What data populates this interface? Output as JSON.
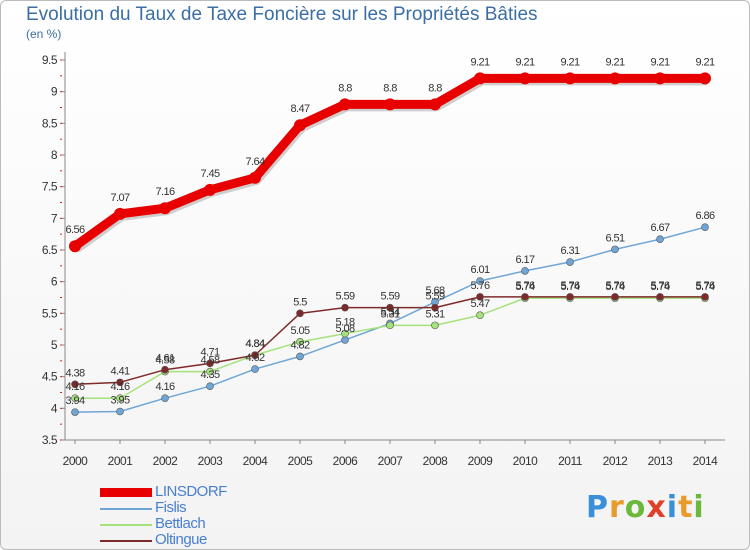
{
  "chart_data": {
    "type": "line",
    "title": "Evolution du Taux de Taxe Foncière sur les Propriétés Bâties",
    "subtitle": "(en %)",
    "xlabel": "",
    "ylabel": "",
    "categories": [
      "2000",
      "2001",
      "2002",
      "2003",
      "2004",
      "2005",
      "2006",
      "2007",
      "2008",
      "2009",
      "2010",
      "2011",
      "2012",
      "2013",
      "2014"
    ],
    "yticks": [
      "3.5",
      "4",
      "4.5",
      "5",
      "5.5",
      "6",
      "6.5",
      "7",
      "7.5",
      "8",
      "8.5",
      "9",
      "9.5"
    ],
    "ylim": [
      3.5,
      9.5
    ],
    "series": [
      {
        "name": "LINSDORF",
        "color": "#e80000",
        "values": [
          6.56,
          7.07,
          7.16,
          7.45,
          7.64,
          8.47,
          8.8,
          8.8,
          8.8,
          9.21,
          9.21,
          9.21,
          9.21,
          9.21,
          9.21
        ],
        "labels": [
          "6.56",
          "7.07",
          "7.16",
          "7.45",
          "7.64",
          "8.47",
          "8.8",
          "8.8",
          "8.8",
          "9.21",
          "9.21",
          "9.21",
          "9.21",
          "9.21",
          "9.21"
        ]
      },
      {
        "name": "Fislis",
        "color": "#6fa6d6",
        "values": [
          3.94,
          3.95,
          4.16,
          4.35,
          4.62,
          4.82,
          5.08,
          5.34,
          5.68,
          6.01,
          6.17,
          6.31,
          6.51,
          6.67,
          6.86
        ],
        "labels": [
          "3.94",
          "3.95",
          "4.16",
          "4.35",
          "4.62",
          "4.82",
          "5.08",
          "5.34",
          "5.68",
          "6.01",
          "6.17",
          "6.31",
          "6.51",
          "6.67",
          "6.86"
        ]
      },
      {
        "name": "Bettlach",
        "color": "#a6e27c",
        "values": [
          4.16,
          4.16,
          4.58,
          4.58,
          4.84,
          5.05,
          5.18,
          5.31,
          5.31,
          5.47,
          5.74,
          5.74,
          5.74,
          5.74,
          5.74
        ],
        "labels": [
          "4.16",
          "4.16",
          "4.58",
          "4.58",
          "4.84",
          "5.05",
          "5.18",
          "5.31",
          "5.31",
          "5.47",
          "5.74",
          "5.74",
          "5.74",
          "5.74",
          "5.74"
        ]
      },
      {
        "name": "Oltingue",
        "color": "#7f2a2a",
        "values": [
          4.38,
          4.41,
          4.61,
          4.71,
          4.84,
          5.5,
          5.59,
          5.59,
          5.59,
          5.76,
          5.76,
          5.76,
          5.76,
          5.76,
          5.76
        ],
        "labels": [
          "4.38",
          "4.41",
          "4.61",
          "4.71",
          "4.84",
          "5.5",
          "5.59",
          "5.59",
          "5.59",
          "5.76",
          "5.76",
          "5.76",
          "5.76",
          "5.76",
          "5.76"
        ]
      }
    ],
    "legend": [
      "LINSDORF",
      "Fislis",
      "Bettlach",
      "Oltingue"
    ],
    "legend_position": "bottom-left",
    "grid": false
  },
  "logo": {
    "letters": [
      "P",
      "r",
      "o",
      "x",
      "i",
      "t",
      "i"
    ],
    "colors": [
      "#3a8fd9",
      "#e89a2a",
      "#6cb83a",
      "#e0402a",
      "#3a8fd9",
      "#e89a2a",
      "#6cb83a"
    ]
  }
}
